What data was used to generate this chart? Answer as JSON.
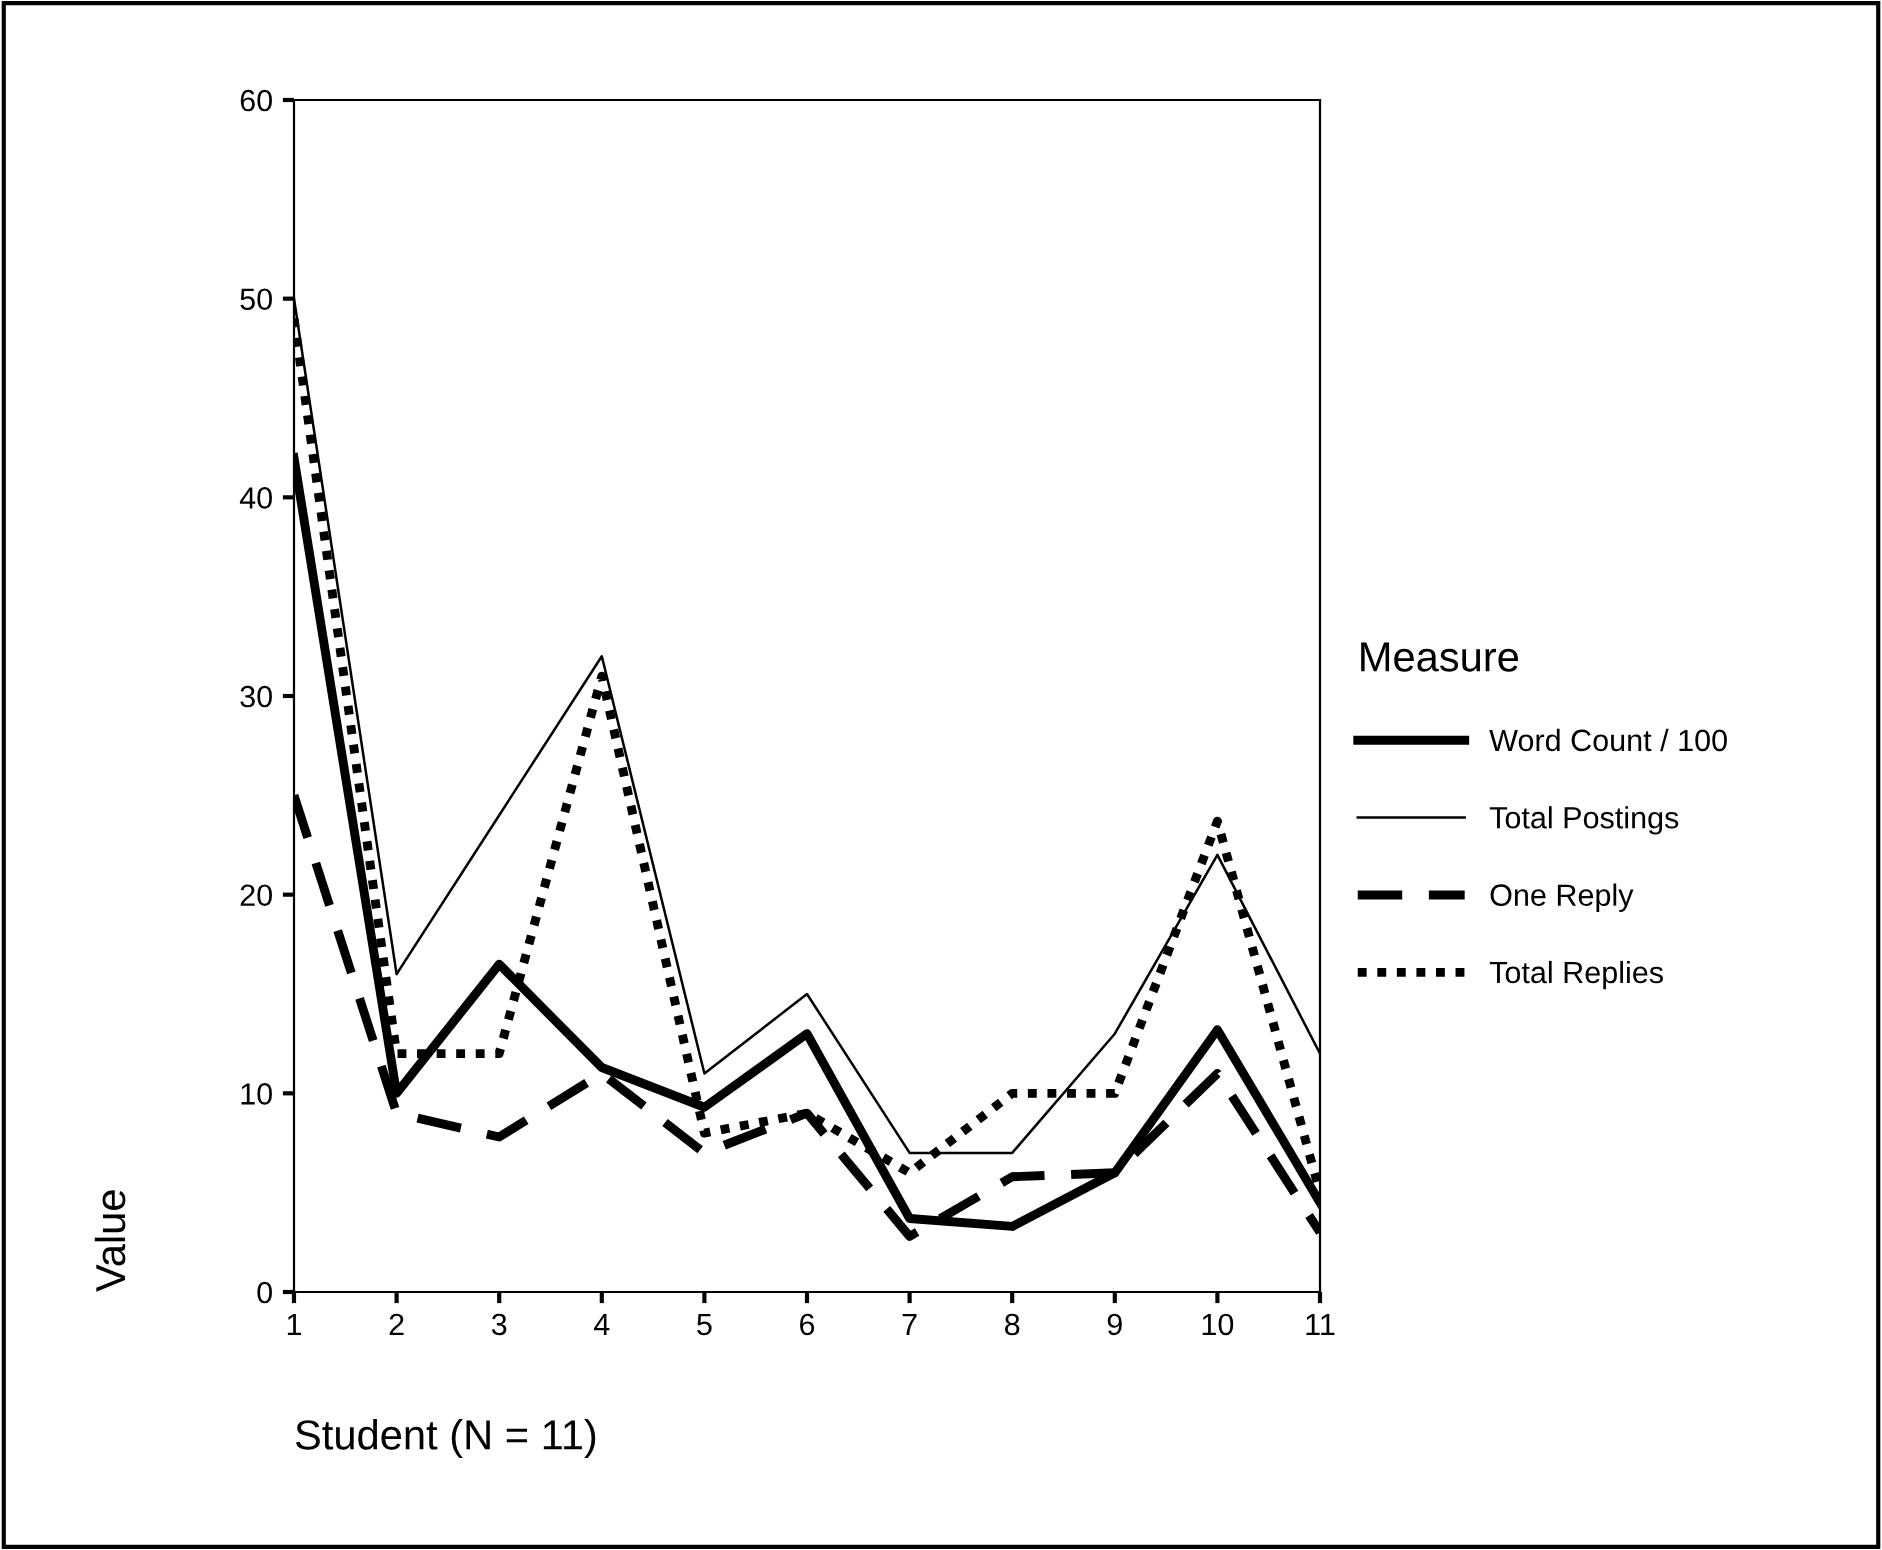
{
  "chart_data": {
    "type": "line",
    "xlabel": "Student (N = 11)",
    "ylabel": "Value",
    "legend_title": "Measure",
    "legend": "right",
    "x": [
      1,
      2,
      3,
      4,
      5,
      6,
      7,
      8,
      9,
      10,
      11
    ],
    "xlim": [
      1,
      11
    ],
    "xticks": [
      1,
      2,
      3,
      4,
      5,
      6,
      7,
      8,
      9,
      10,
      11
    ],
    "ylim": [
      0,
      60
    ],
    "yticks": [
      0,
      10,
      20,
      30,
      40,
      50,
      60
    ],
    "grid": false,
    "marker": "none",
    "series": [
      {
        "name": "Word Count / 100",
        "color": "#000000",
        "line_style": "solid",
        "values": [
          42,
          10,
          16.5,
          11.3,
          9.3,
          13,
          3.7,
          3.3,
          6,
          13.2,
          4.5
        ]
      },
      {
        "name": "Total Postings",
        "color": "#000000",
        "line_style": "solid",
        "values": [
          50,
          16,
          24,
          32,
          11,
          15,
          7,
          7,
          13,
          22,
          12
        ]
      },
      {
        "name": "One Reply",
        "color": "#000000",
        "line_style": "dashed",
        "values": [
          25,
          9,
          7.8,
          11,
          7,
          9,
          2.8,
          5.8,
          6,
          11,
          3
        ]
      },
      {
        "name": "Total Replies",
        "color": "#000000",
        "line_style": "dotted",
        "values": [
          49,
          12,
          12,
          31,
          8,
          9,
          6,
          10,
          10,
          23.7,
          5
        ]
      }
    ]
  }
}
